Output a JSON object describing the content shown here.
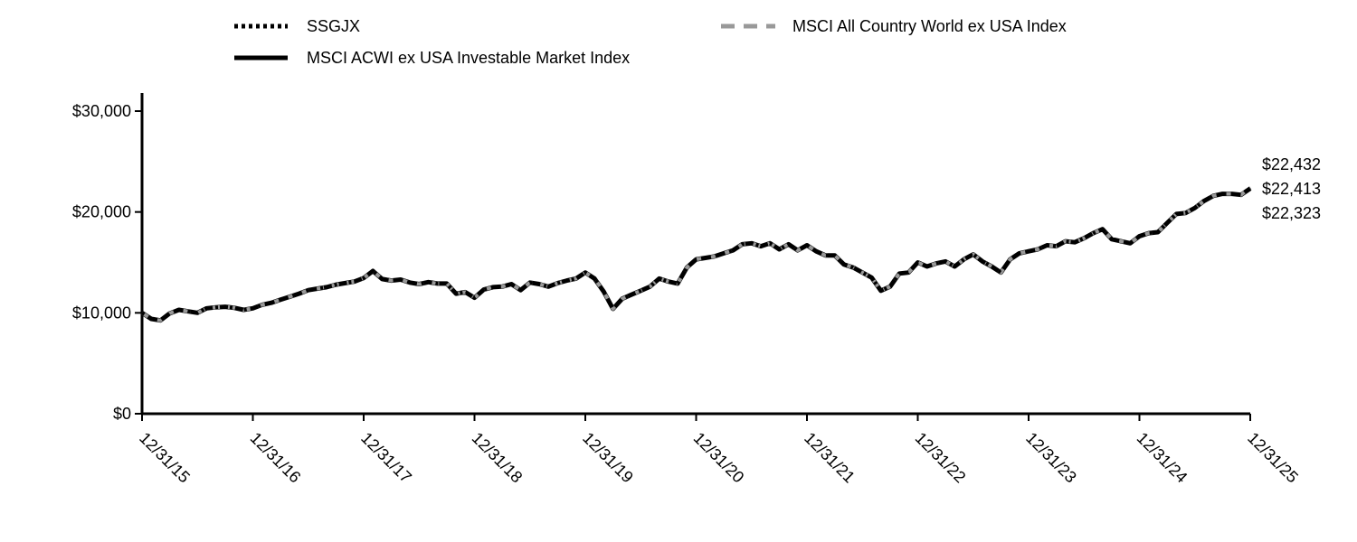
{
  "colors": {
    "fund": "#000000",
    "broad_index": "#000000",
    "regional_index": "#999999"
  },
  "chart_data": {
    "type": "line",
    "title": "",
    "xlabel": "",
    "ylabel": "",
    "ylim": [
      0,
      30000
    ],
    "yticks": [
      0,
      10000,
      20000,
      30000
    ],
    "ytick_labels": [
      "$0",
      "$10,000",
      "$20,000",
      "$30,000"
    ],
    "xtick_labels": [
      "12/31/15",
      "12/31/16",
      "12/31/17",
      "12/31/18",
      "12/31/19",
      "12/31/20",
      "12/31/21",
      "12/31/22",
      "12/31/23",
      "12/31/24",
      "12/31/25"
    ],
    "grid": false,
    "legend_placement": "top",
    "end_labels": [
      "$22,432",
      "$22,413",
      "$22,323"
    ],
    "x": [
      "2015-12",
      "2016-01",
      "2016-02",
      "2016-03",
      "2016-04",
      "2016-05",
      "2016-06",
      "2016-07",
      "2016-08",
      "2016-09",
      "2016-10",
      "2016-11",
      "2016-12",
      "2017-01",
      "2017-02",
      "2017-03",
      "2017-04",
      "2017-05",
      "2017-06",
      "2017-07",
      "2017-08",
      "2017-09",
      "2017-10",
      "2017-11",
      "2017-12",
      "2018-01",
      "2018-02",
      "2018-03",
      "2018-04",
      "2018-05",
      "2018-06",
      "2018-07",
      "2018-08",
      "2018-09",
      "2018-10",
      "2018-11",
      "2018-12",
      "2019-01",
      "2019-02",
      "2019-03",
      "2019-04",
      "2019-05",
      "2019-06",
      "2019-07",
      "2019-08",
      "2019-09",
      "2019-10",
      "2019-11",
      "2019-12",
      "2020-01",
      "2020-02",
      "2020-03",
      "2020-04",
      "2020-05",
      "2020-06",
      "2020-07",
      "2020-08",
      "2020-09",
      "2020-10",
      "2020-11",
      "2020-12",
      "2021-01",
      "2021-02",
      "2021-03",
      "2021-04",
      "2021-05",
      "2021-06",
      "2021-07",
      "2021-08",
      "2021-09",
      "2021-10",
      "2021-11",
      "2021-12",
      "2022-01",
      "2022-02",
      "2022-03",
      "2022-04",
      "2022-05",
      "2022-06",
      "2022-07",
      "2022-08",
      "2022-09",
      "2022-10",
      "2022-11",
      "2022-12",
      "2023-01",
      "2023-02",
      "2023-03",
      "2023-04",
      "2023-05",
      "2023-06",
      "2023-07",
      "2023-08",
      "2023-09",
      "2023-10",
      "2023-11",
      "2023-12",
      "2024-01",
      "2024-02",
      "2024-03",
      "2024-04",
      "2024-05",
      "2024-06",
      "2024-07",
      "2024-08",
      "2024-09",
      "2024-10",
      "2024-11",
      "2024-12",
      "2025-01",
      "2025-02",
      "2025-03",
      "2025-04",
      "2025-05",
      "2025-06",
      "2025-07",
      "2025-08",
      "2025-09",
      "2025-10",
      "2025-11",
      "2025-12"
    ],
    "series": [
      {
        "name": "MSCI ACWI ex USA Investable Market Index",
        "style": "solid",
        "values": [
          10000,
          9400,
          9250,
          9950,
          10300,
          10150,
          10000,
          10450,
          10550,
          10600,
          10500,
          10300,
          10450,
          10800,
          11000,
          11300,
          11600,
          11900,
          12250,
          12400,
          12550,
          12800,
          12950,
          13100,
          13450,
          14150,
          13350,
          13200,
          13300,
          13000,
          12850,
          13050,
          12900,
          12900,
          11900,
          12050,
          11500,
          12300,
          12550,
          12600,
          12850,
          12250,
          13000,
          12850,
          12600,
          12950,
          13200,
          13400,
          14000,
          13400,
          12100,
          10400,
          11400,
          11800,
          12200,
          12600,
          13400,
          13100,
          12900,
          14500,
          15300,
          15450,
          15600,
          15900,
          16200,
          16800,
          16900,
          16600,
          16900,
          16300,
          16800,
          16200,
          16700,
          16100,
          15700,
          15700,
          14800,
          14500,
          14000,
          13500,
          12200,
          12600,
          13900,
          14000,
          15000,
          14600,
          14900,
          15100,
          14600,
          15300,
          15800,
          15100,
          14600,
          14000,
          15300,
          15900,
          16100,
          16300,
          16700,
          16600,
          17100,
          17000,
          17400,
          17900,
          18300,
          17300,
          17100,
          16900,
          17600,
          17900,
          18000,
          18900,
          19800,
          19900,
          20400,
          21100,
          21600,
          21800,
          21800,
          21700,
          22323
        ]
      },
      {
        "name": "MSCI All Country World ex USA Index",
        "style": "dashed",
        "values": [
          10000,
          9400,
          9250,
          9950,
          10300,
          10150,
          10000,
          10450,
          10550,
          10600,
          10500,
          10300,
          10450,
          10800,
          11000,
          11300,
          11600,
          11900,
          12250,
          12400,
          12550,
          12800,
          12950,
          13100,
          13450,
          14150,
          13350,
          13200,
          13300,
          13000,
          12850,
          13050,
          12900,
          12900,
          11900,
          12050,
          11500,
          12300,
          12550,
          12600,
          12850,
          12250,
          13000,
          12850,
          12600,
          12950,
          13200,
          13400,
          14000,
          13400,
          12100,
          10400,
          11400,
          11800,
          12200,
          12600,
          13400,
          13100,
          12900,
          14500,
          15300,
          15450,
          15600,
          15900,
          16200,
          16800,
          16900,
          16600,
          16900,
          16300,
          16800,
          16200,
          16700,
          16100,
          15700,
          15700,
          14800,
          14500,
          14000,
          13500,
          12200,
          12600,
          13900,
          14000,
          15000,
          14600,
          14900,
          15100,
          14600,
          15300,
          15800,
          15100,
          14600,
          14000,
          15300,
          15900,
          16100,
          16300,
          16700,
          16600,
          17100,
          17000,
          17400,
          17900,
          18300,
          17300,
          17100,
          16900,
          17600,
          17900,
          18000,
          18900,
          19800,
          19900,
          20400,
          21100,
          21600,
          21800,
          21800,
          21700,
          22432
        ]
      },
      {
        "name": "SSGJX",
        "style": "dotted",
        "values": [
          10000,
          9400,
          9250,
          9950,
          10300,
          10150,
          10000,
          10450,
          10550,
          10600,
          10500,
          10300,
          10450,
          10800,
          11000,
          11300,
          11600,
          11900,
          12250,
          12400,
          12550,
          12800,
          12950,
          13100,
          13450,
          14150,
          13350,
          13200,
          13300,
          13000,
          12850,
          13050,
          12900,
          12900,
          11900,
          12050,
          11500,
          12300,
          12550,
          12600,
          12850,
          12250,
          13000,
          12850,
          12600,
          12950,
          13200,
          13400,
          14000,
          13400,
          12100,
          10400,
          11400,
          11800,
          12200,
          12600,
          13400,
          13100,
          12900,
          14500,
          15300,
          15450,
          15600,
          15900,
          16200,
          16800,
          16900,
          16600,
          16900,
          16300,
          16800,
          16200,
          16700,
          16100,
          15700,
          15700,
          14800,
          14500,
          14000,
          13500,
          12200,
          12600,
          13900,
          14000,
          15000,
          14600,
          14900,
          15100,
          14600,
          15300,
          15800,
          15100,
          14600,
          14000,
          15300,
          15900,
          16100,
          16300,
          16700,
          16600,
          17100,
          17000,
          17400,
          17900,
          18300,
          17300,
          17100,
          16900,
          17600,
          17900,
          18000,
          18900,
          19800,
          19900,
          20400,
          21100,
          21600,
          21800,
          21800,
          21700,
          22413
        ]
      }
    ]
  },
  "legend": {
    "fund": "SSGJX",
    "broad_index": "MSCI ACWI ex USA Investable Market Index",
    "regional_index": "MSCI All Country World ex USA Index"
  }
}
